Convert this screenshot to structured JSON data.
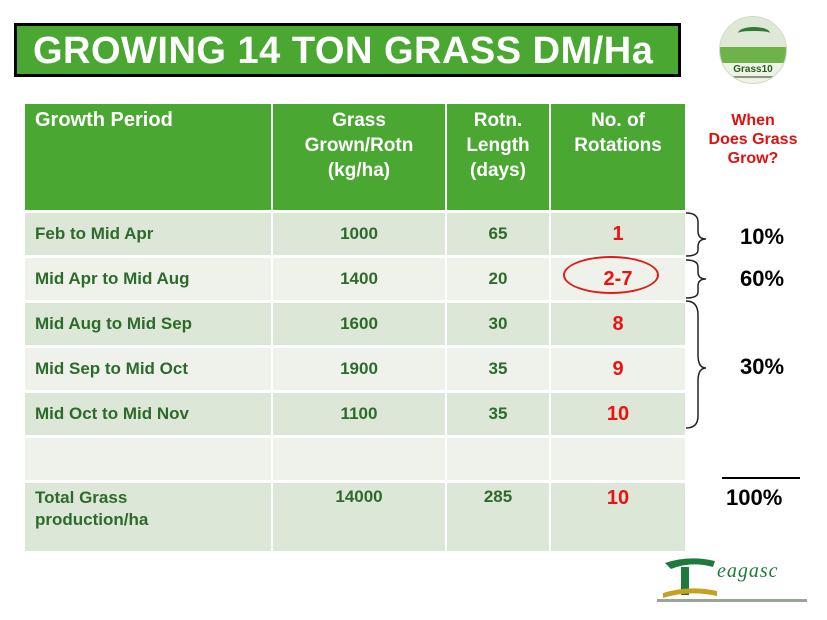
{
  "title": "GROWING 14 TON GRASS DM/Ha",
  "logo_top": {
    "name": "Grass10"
  },
  "table": {
    "headers": {
      "period": "Growth Period",
      "grown": [
        "Grass",
        "Grown/Rotn",
        "(kg/ha)"
      ],
      "length": [
        "Rotn.",
        "Length",
        "(days)"
      ],
      "rotations": [
        "No. of",
        "Rotations"
      ]
    },
    "rows": [
      {
        "period": "Feb to Mid Apr",
        "grown": "1000",
        "length": "65",
        "rotations": "1"
      },
      {
        "period": "Mid Apr to Mid Aug",
        "grown": "1400",
        "length": "20",
        "rotations": "2-7"
      },
      {
        "period": "Mid Aug to Mid Sep",
        "grown": "1600",
        "length": "30",
        "rotations": "8"
      },
      {
        "period": "Mid Sep to Mid Oct",
        "grown": "1900",
        "length": "35",
        "rotations": "9"
      },
      {
        "period": "Mid Oct to Mid Nov",
        "grown": "1100",
        "length": "35",
        "rotations": "10"
      },
      {
        "period": "",
        "grown": "",
        "length": "",
        "rotations": ""
      }
    ],
    "total": {
      "period": [
        "Total Grass",
        "production/ha"
      ],
      "grown": "14000",
      "length": "285",
      "rotations": "10"
    }
  },
  "side": {
    "heading": [
      "When",
      "Does Grass",
      "Grow?"
    ],
    "percentages": [
      "10%",
      "60%",
      "30%"
    ],
    "total": "100%"
  },
  "logo_bottom": {
    "name": "eagasc"
  }
}
